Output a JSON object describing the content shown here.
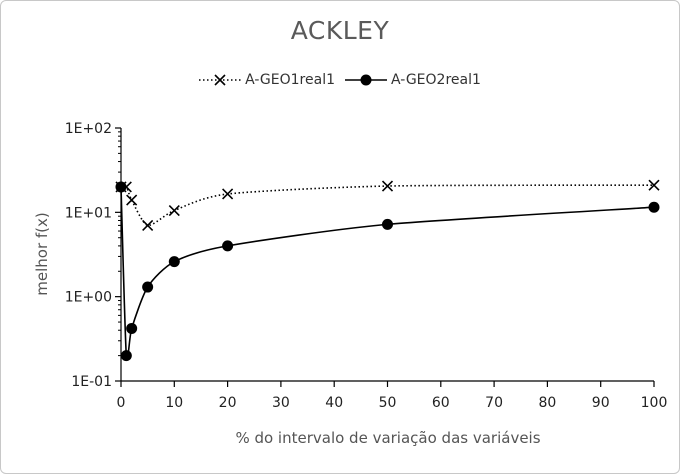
{
  "chart_data": {
    "type": "line",
    "title": "ACKLEY",
    "xlabel": "% do intervalo de variação das variáveis",
    "ylabel": "melhor f(x)",
    "xlim": [
      0,
      100
    ],
    "ylim": [
      0.1,
      100
    ],
    "yscale": "log",
    "x_ticks": [
      0,
      10,
      20,
      30,
      40,
      50,
      60,
      70,
      80,
      90,
      100
    ],
    "y_ticks": [
      0.1,
      1,
      10,
      100
    ],
    "y_tick_labels": [
      "1E-01",
      "1E+00",
      "1E+01",
      "1E+02"
    ],
    "legend_position": "top",
    "series": [
      {
        "name": "A-GEO1real1",
        "marker": "x",
        "line": "dotted",
        "color": "#000000",
        "x": [
          0,
          1,
          2,
          5,
          10,
          20,
          50,
          100
        ],
        "y": [
          20,
          20,
          14,
          7,
          10.5,
          16.5,
          20.5,
          21
        ]
      },
      {
        "name": "A-GEO2real1",
        "marker": "circle",
        "line": "solid",
        "color": "#000000",
        "x": [
          0,
          1,
          2,
          5,
          10,
          20,
          50,
          100
        ],
        "y": [
          20,
          0.2,
          0.42,
          1.3,
          2.6,
          4.0,
          7.2,
          11.5
        ]
      }
    ]
  }
}
